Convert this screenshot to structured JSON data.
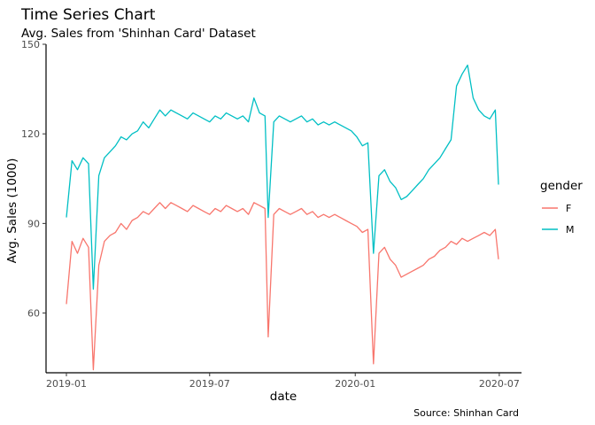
{
  "chart_data": {
    "type": "line",
    "title": "Time Series Chart",
    "subtitle": "Avg. Sales from 'Shinhan Card' Dataset",
    "caption": "Source: Shinhan Card",
    "xlabel": "date",
    "ylabel": "Avg. Sales (1000)",
    "x_ticks": [
      "2019-01",
      "2019-07",
      "2020-01",
      "2020-07"
    ],
    "y_ticks": [
      60,
      90,
      120,
      150
    ],
    "xlim": [
      "2019-01-01",
      "2020-06-30"
    ],
    "ylim": [
      40,
      150
    ],
    "grid": false,
    "legend": {
      "title": "gender",
      "position": "right",
      "entries": [
        "F",
        "M"
      ]
    },
    "series": [
      {
        "name": "F",
        "color": "#F8766D",
        "points": [
          [
            "2019-01-01",
            63
          ],
          [
            "2019-01-08",
            84
          ],
          [
            "2019-01-15",
            80
          ],
          [
            "2019-01-22",
            85
          ],
          [
            "2019-01-29",
            82
          ],
          [
            "2019-02-04",
            41
          ],
          [
            "2019-02-11",
            76
          ],
          [
            "2019-02-18",
            84
          ],
          [
            "2019-02-25",
            86
          ],
          [
            "2019-03-04",
            87
          ],
          [
            "2019-03-11",
            90
          ],
          [
            "2019-03-18",
            88
          ],
          [
            "2019-03-25",
            91
          ],
          [
            "2019-04-01",
            92
          ],
          [
            "2019-04-08",
            94
          ],
          [
            "2019-04-15",
            93
          ],
          [
            "2019-04-22",
            95
          ],
          [
            "2019-04-29",
            97
          ],
          [
            "2019-05-06",
            95
          ],
          [
            "2019-05-13",
            97
          ],
          [
            "2019-05-20",
            96
          ],
          [
            "2019-05-27",
            95
          ],
          [
            "2019-06-03",
            94
          ],
          [
            "2019-06-10",
            96
          ],
          [
            "2019-06-17",
            95
          ],
          [
            "2019-06-24",
            94
          ],
          [
            "2019-07-01",
            93
          ],
          [
            "2019-07-08",
            95
          ],
          [
            "2019-07-15",
            94
          ],
          [
            "2019-07-22",
            96
          ],
          [
            "2019-07-29",
            95
          ],
          [
            "2019-08-05",
            94
          ],
          [
            "2019-08-12",
            95
          ],
          [
            "2019-08-19",
            93
          ],
          [
            "2019-08-26",
            97
          ],
          [
            "2019-09-02",
            96
          ],
          [
            "2019-09-09",
            95
          ],
          [
            "2019-09-13",
            52
          ],
          [
            "2019-09-20",
            93
          ],
          [
            "2019-09-27",
            95
          ],
          [
            "2019-10-04",
            94
          ],
          [
            "2019-10-11",
            93
          ],
          [
            "2019-10-18",
            94
          ],
          [
            "2019-10-25",
            95
          ],
          [
            "2019-11-01",
            93
          ],
          [
            "2019-11-08",
            94
          ],
          [
            "2019-11-15",
            92
          ],
          [
            "2019-11-22",
            93
          ],
          [
            "2019-11-29",
            92
          ],
          [
            "2019-12-06",
            93
          ],
          [
            "2019-12-13",
            92
          ],
          [
            "2019-12-20",
            91
          ],
          [
            "2019-12-27",
            90
          ],
          [
            "2020-01-03",
            89
          ],
          [
            "2020-01-10",
            87
          ],
          [
            "2020-01-17",
            88
          ],
          [
            "2020-01-24",
            43
          ],
          [
            "2020-01-31",
            80
          ],
          [
            "2020-02-07",
            82
          ],
          [
            "2020-02-14",
            78
          ],
          [
            "2020-02-21",
            76
          ],
          [
            "2020-02-28",
            72
          ],
          [
            "2020-03-06",
            73
          ],
          [
            "2020-03-13",
            74
          ],
          [
            "2020-03-20",
            75
          ],
          [
            "2020-03-27",
            76
          ],
          [
            "2020-04-03",
            78
          ],
          [
            "2020-04-10",
            79
          ],
          [
            "2020-04-17",
            81
          ],
          [
            "2020-04-24",
            82
          ],
          [
            "2020-05-01",
            84
          ],
          [
            "2020-05-08",
            83
          ],
          [
            "2020-05-15",
            85
          ],
          [
            "2020-05-22",
            84
          ],
          [
            "2020-05-29",
            85
          ],
          [
            "2020-06-05",
            86
          ],
          [
            "2020-06-12",
            87
          ],
          [
            "2020-06-19",
            86
          ],
          [
            "2020-06-26",
            88
          ],
          [
            "2020-06-30",
            78
          ]
        ]
      },
      {
        "name": "M",
        "color": "#00BFC4",
        "points": [
          [
            "2019-01-01",
            92
          ],
          [
            "2019-01-08",
            111
          ],
          [
            "2019-01-15",
            108
          ],
          [
            "2019-01-22",
            112
          ],
          [
            "2019-01-29",
            110
          ],
          [
            "2019-02-04",
            68
          ],
          [
            "2019-02-11",
            106
          ],
          [
            "2019-02-18",
            112
          ],
          [
            "2019-02-25",
            114
          ],
          [
            "2019-03-04",
            116
          ],
          [
            "2019-03-11",
            119
          ],
          [
            "2019-03-18",
            118
          ],
          [
            "2019-03-25",
            120
          ],
          [
            "2019-04-01",
            121
          ],
          [
            "2019-04-08",
            124
          ],
          [
            "2019-04-15",
            122
          ],
          [
            "2019-04-22",
            125
          ],
          [
            "2019-04-29",
            128
          ],
          [
            "2019-05-06",
            126
          ],
          [
            "2019-05-13",
            128
          ],
          [
            "2019-05-20",
            127
          ],
          [
            "2019-05-27",
            126
          ],
          [
            "2019-06-03",
            125
          ],
          [
            "2019-06-10",
            127
          ],
          [
            "2019-06-17",
            126
          ],
          [
            "2019-06-24",
            125
          ],
          [
            "2019-07-01",
            124
          ],
          [
            "2019-07-08",
            126
          ],
          [
            "2019-07-15",
            125
          ],
          [
            "2019-07-22",
            127
          ],
          [
            "2019-07-29",
            126
          ],
          [
            "2019-08-05",
            125
          ],
          [
            "2019-08-12",
            126
          ],
          [
            "2019-08-19",
            124
          ],
          [
            "2019-08-26",
            132
          ],
          [
            "2019-09-02",
            127
          ],
          [
            "2019-09-09",
            126
          ],
          [
            "2019-09-13",
            92
          ],
          [
            "2019-09-20",
            124
          ],
          [
            "2019-09-27",
            126
          ],
          [
            "2019-10-04",
            125
          ],
          [
            "2019-10-11",
            124
          ],
          [
            "2019-10-18",
            125
          ],
          [
            "2019-10-25",
            126
          ],
          [
            "2019-11-01",
            124
          ],
          [
            "2019-11-08",
            125
          ],
          [
            "2019-11-15",
            123
          ],
          [
            "2019-11-22",
            124
          ],
          [
            "2019-11-29",
            123
          ],
          [
            "2019-12-06",
            124
          ],
          [
            "2019-12-13",
            123
          ],
          [
            "2019-12-20",
            122
          ],
          [
            "2019-12-27",
            121
          ],
          [
            "2020-01-03",
            119
          ],
          [
            "2020-01-10",
            116
          ],
          [
            "2020-01-17",
            117
          ],
          [
            "2020-01-24",
            80
          ],
          [
            "2020-01-31",
            106
          ],
          [
            "2020-02-07",
            108
          ],
          [
            "2020-02-14",
            104
          ],
          [
            "2020-02-21",
            102
          ],
          [
            "2020-02-28",
            98
          ],
          [
            "2020-03-06",
            99
          ],
          [
            "2020-03-13",
            101
          ],
          [
            "2020-03-20",
            103
          ],
          [
            "2020-03-27",
            105
          ],
          [
            "2020-04-03",
            108
          ],
          [
            "2020-04-10",
            110
          ],
          [
            "2020-04-17",
            112
          ],
          [
            "2020-04-24",
            115
          ],
          [
            "2020-05-01",
            118
          ],
          [
            "2020-05-08",
            136
          ],
          [
            "2020-05-15",
            140
          ],
          [
            "2020-05-22",
            143
          ],
          [
            "2020-05-29",
            132
          ],
          [
            "2020-06-05",
            128
          ],
          [
            "2020-06-12",
            126
          ],
          [
            "2020-06-19",
            125
          ],
          [
            "2020-06-26",
            128
          ],
          [
            "2020-06-30",
            103
          ]
        ]
      }
    ]
  }
}
